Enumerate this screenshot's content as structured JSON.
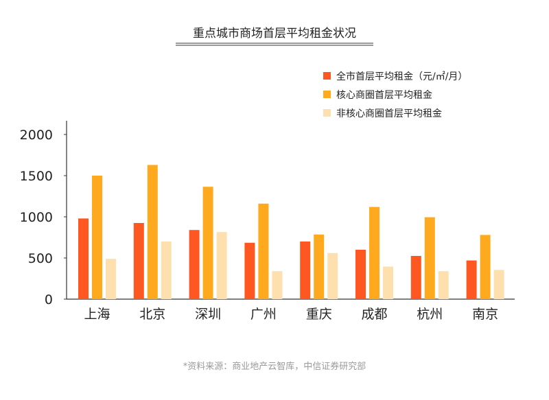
{
  "chart_data": {
    "type": "bar",
    "title": "重点城市商场首层平均租金状况",
    "categories": [
      "上海",
      "北京",
      "深圳",
      "广州",
      "重庆",
      "成都",
      "杭州",
      "南京"
    ],
    "series": [
      {
        "name": "全市首层平均租金（元/㎡/月）",
        "color": "#ff5722",
        "values": [
          980,
          925,
          840,
          685,
          700,
          600,
          525,
          470
        ]
      },
      {
        "name": "核心商圈首层平均租金",
        "color": "#ffa91f",
        "values": [
          1500,
          1630,
          1365,
          1160,
          785,
          1120,
          995,
          780
        ]
      },
      {
        "name": "非核心商圈首层平均租金",
        "color": "#fde0ad",
        "values": [
          490,
          700,
          815,
          340,
          560,
          395,
          340,
          355
        ]
      }
    ],
    "ylim": [
      0,
      2000
    ],
    "yticks": [
      "0",
      "500",
      "1000",
      "1500",
      "2000"
    ],
    "xlabel": "",
    "ylabel": "",
    "legend_position": "top-right",
    "grid": false
  },
  "source_note": "*资料来源：商业地产云智库，中信证券研究部"
}
